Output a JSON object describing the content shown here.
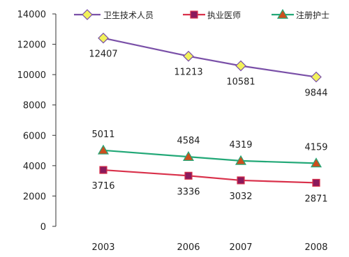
{
  "chart_data": {
    "type": "line",
    "title": "",
    "xlabel": "",
    "ylabel": "",
    "categories": [
      "2003",
      "2006",
      "2007",
      "2008"
    ],
    "ylim": [
      0,
      14000
    ],
    "yticks": [
      0,
      2000,
      4000,
      6000,
      8000,
      10000,
      12000,
      14000
    ],
    "grid": false,
    "legend_position": "top",
    "series": [
      {
        "name": "卫生技术人员",
        "values": [
          12407,
          11213,
          10581,
          9844
        ],
        "color": "#7a50a8",
        "marker": "diamond",
        "marker_fill": "#f2f25a",
        "label_position": "below"
      },
      {
        "name": "执业医师",
        "values": [
          3716,
          3336,
          3032,
          2871
        ],
        "color": "#d9304a",
        "marker": "square",
        "marker_fill": "#8a1a5c",
        "label_position": "below"
      },
      {
        "name": "注册护士",
        "values": [
          5011,
          4584,
          4319,
          4159
        ],
        "color": "#22a877",
        "marker": "triangle",
        "marker_fill": "#cc4f1e",
        "label_position": "above"
      }
    ]
  }
}
